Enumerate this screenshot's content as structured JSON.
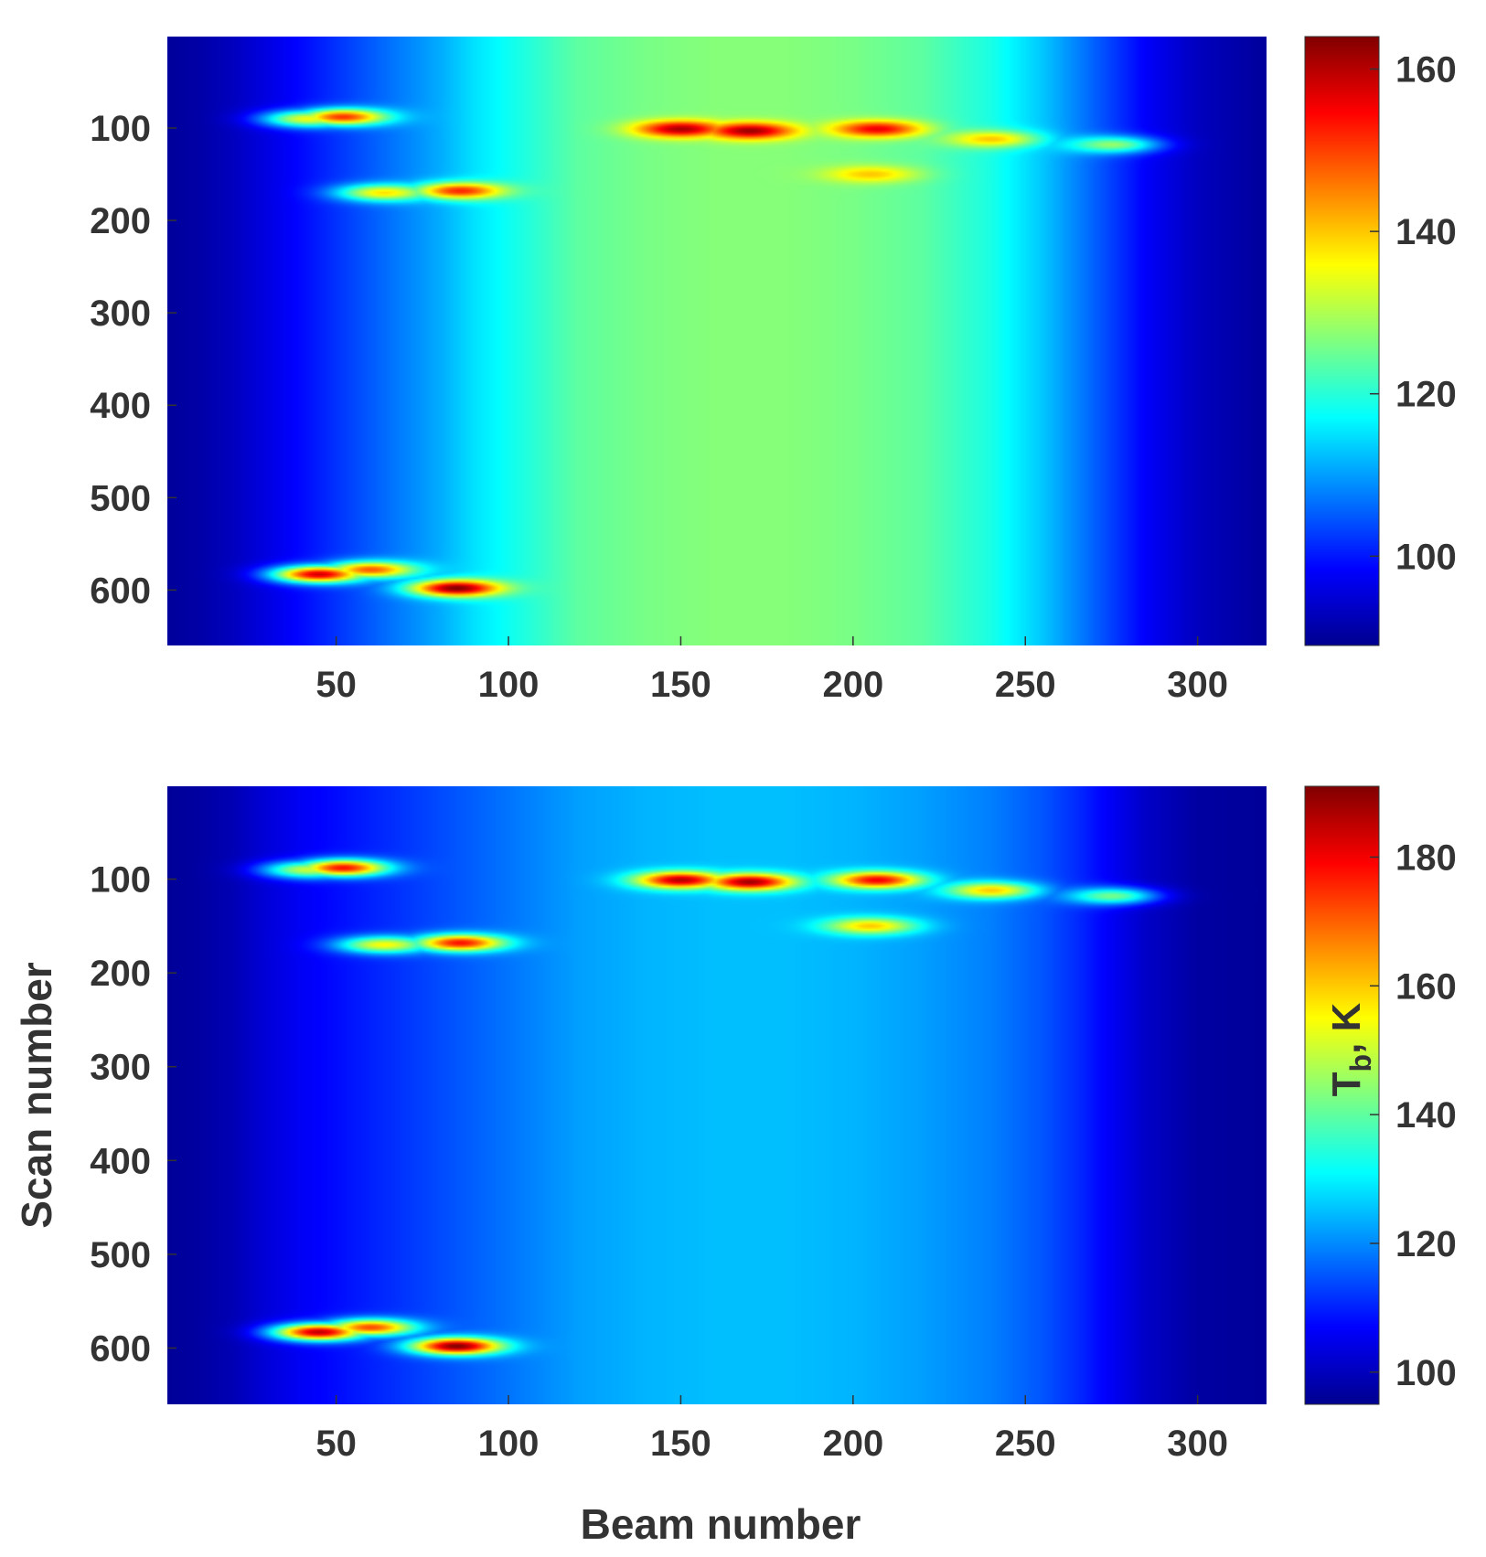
{
  "chart_data": [
    {
      "type": "heatmap",
      "xlabel": "",
      "ylabel": "",
      "colorbar_label": "",
      "x_ticks": [
        50,
        100,
        150,
        200,
        250,
        300
      ],
      "y_ticks": [
        100,
        200,
        300,
        400,
        500,
        600
      ],
      "xlim": [
        1,
        320
      ],
      "ylim": [
        660,
        1
      ],
      "colorbar_ticks": [
        100,
        120,
        140,
        160
      ],
      "colorbar_range": [
        89,
        164
      ],
      "colormap": "jet",
      "grid": false,
      "background_profile": {
        "beam": [
          1,
          10,
          20,
          30,
          40,
          50,
          60,
          70,
          80,
          90,
          100,
          110,
          120,
          140,
          160,
          180,
          200,
          220,
          240,
          255,
          265,
          275,
          285,
          300,
          320
        ],
        "tb": [
          90,
          91,
          93,
          96,
          99,
          102,
          105,
          108,
          111,
          115,
          118,
          121,
          124,
          126,
          127,
          127,
          126,
          124,
          119,
          113,
          108,
          103,
          98,
          93,
          90
        ]
      },
      "hotspots": [
        {
          "beam": 52,
          "scan": 88,
          "tb": 151
        },
        {
          "beam": 42,
          "scan": 90,
          "tb": 135
        },
        {
          "beam": 86,
          "scan": 168,
          "tb": 152
        },
        {
          "beam": 64,
          "scan": 170,
          "tb": 138
        },
        {
          "beam": 150,
          "scan": 101,
          "tb": 161
        },
        {
          "beam": 170,
          "scan": 103,
          "tb": 162
        },
        {
          "beam": 207,
          "scan": 101,
          "tb": 156
        },
        {
          "beam": 240,
          "scan": 112,
          "tb": 140
        },
        {
          "beam": 275,
          "scan": 118,
          "tb": 128
        },
        {
          "beam": 205,
          "scan": 150,
          "tb": 140
        },
        {
          "beam": 45,
          "scan": 583,
          "tb": 158
        },
        {
          "beam": 60,
          "scan": 578,
          "tb": 148
        },
        {
          "beam": 85,
          "scan": 598,
          "tb": 164
        }
      ]
    },
    {
      "type": "heatmap",
      "xlabel": "Beam number",
      "ylabel": "Scan number",
      "colorbar_label": "T",
      "colorbar_label_subscript": "b",
      "colorbar_label_unit": ", K",
      "x_ticks": [
        50,
        100,
        150,
        200,
        250,
        300
      ],
      "y_ticks": [
        100,
        200,
        300,
        400,
        500,
        600
      ],
      "xlim": [
        1,
        320
      ],
      "ylim": [
        660,
        1
      ],
      "colorbar_ticks": [
        100,
        120,
        140,
        160,
        180
      ],
      "colorbar_range": [
        95,
        191
      ],
      "colormap": "jet",
      "grid": false,
      "background_profile": {
        "beam": [
          1,
          10,
          20,
          30,
          40,
          60,
          80,
          100,
          120,
          140,
          160,
          180,
          200,
          220,
          240,
          255,
          265,
          275,
          285,
          300,
          320
        ],
        "tb": [
          96,
          97,
          99,
          103,
          106,
          110,
          114,
          118,
          122,
          124,
          125,
          125,
          124,
          122,
          119,
          115,
          111,
          106,
          101,
          97,
          96
        ]
      },
      "hotspots": [
        {
          "beam": 52,
          "scan": 88,
          "tb": 178
        },
        {
          "beam": 42,
          "scan": 90,
          "tb": 150
        },
        {
          "beam": 86,
          "scan": 168,
          "tb": 178
        },
        {
          "beam": 64,
          "scan": 170,
          "tb": 155
        },
        {
          "beam": 150,
          "scan": 101,
          "tb": 186
        },
        {
          "beam": 170,
          "scan": 103,
          "tb": 188
        },
        {
          "beam": 207,
          "scan": 101,
          "tb": 180
        },
        {
          "beam": 240,
          "scan": 112,
          "tb": 160
        },
        {
          "beam": 275,
          "scan": 118,
          "tb": 142
        },
        {
          "beam": 205,
          "scan": 150,
          "tb": 160
        },
        {
          "beam": 45,
          "scan": 583,
          "tb": 185
        },
        {
          "beam": 60,
          "scan": 578,
          "tb": 172
        },
        {
          "beam": 85,
          "scan": 598,
          "tb": 191
        }
      ]
    }
  ]
}
